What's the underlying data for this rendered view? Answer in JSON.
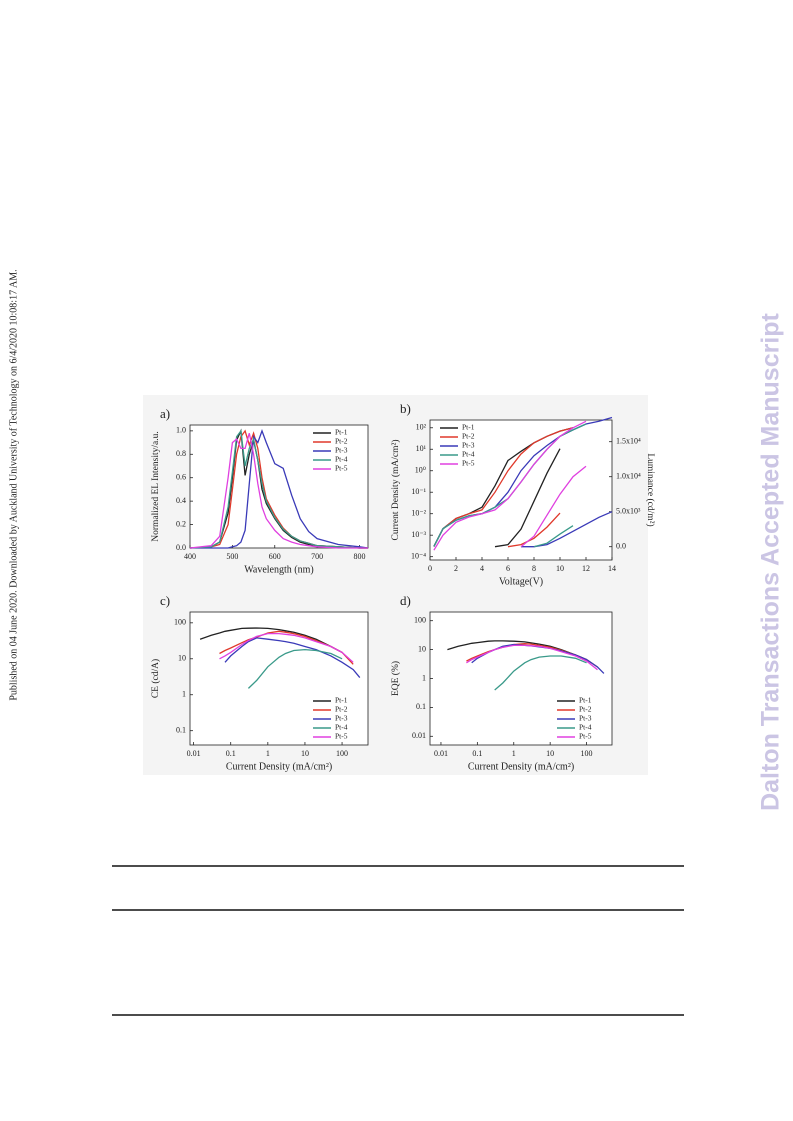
{
  "page": {
    "side_note": "Published on 04 June 2020. Downloaded by Auckland University of Technology on 6/4/2020 10:08:17 AM.",
    "watermark": "Dalton Transactions Accepted Manuscript"
  },
  "chart_data": [
    {
      "type": "line",
      "panel": "a)",
      "x_label": "Wavelength (nm)",
      "y_label": "Normalized EL Intensity/a.u.",
      "legend": "top-right",
      "xlim": [
        400,
        820
      ],
      "xticks": [
        400,
        500,
        600,
        700,
        800
      ],
      "ylim": [
        0,
        1.05
      ],
      "yticks": [
        {
          "value": 0,
          "label": "0.0"
        },
        0.2,
        0.4,
        0.6,
        0.8,
        {
          "value": 1,
          "label": "1.0"
        }
      ],
      "x": [
        400,
        450,
        470,
        490,
        500,
        510,
        520,
        530,
        540,
        550,
        560,
        570,
        580,
        600,
        620,
        640,
        660,
        680,
        700,
        750,
        800,
        820
      ],
      "series": [
        {
          "name": "Pt-1",
          "color": "#222222",
          "values": [
            0,
            0.01,
            0.05,
            0.3,
            0.6,
            0.92,
            1.0,
            0.62,
            0.8,
            0.92,
            0.75,
            0.5,
            0.38,
            0.25,
            0.15,
            0.09,
            0.05,
            0.03,
            0.02,
            0.01,
            0,
            0
          ]
        },
        {
          "name": "Pt-2",
          "color": "#e0392b",
          "values": [
            0,
            0.01,
            0.03,
            0.2,
            0.5,
            0.8,
            0.95,
            1.0,
            0.88,
            0.98,
            0.85,
            0.6,
            0.42,
            0.28,
            0.17,
            0.1,
            0.06,
            0.04,
            0.02,
            0.01,
            0,
            0
          ]
        },
        {
          "name": "Pt-3",
          "color": "#3a3ab8",
          "values": [
            0,
            0,
            0,
            0,
            0.01,
            0.02,
            0.05,
            0.15,
            0.55,
            0.95,
            0.9,
            1.0,
            0.9,
            0.72,
            0.68,
            0.45,
            0.25,
            0.14,
            0.08,
            0.03,
            0.01,
            0
          ]
        },
        {
          "name": "Pt-4",
          "color": "#3a9a8a",
          "values": [
            0,
            0.01,
            0.05,
            0.35,
            0.65,
            0.95,
            1.0,
            0.7,
            0.85,
            0.93,
            0.75,
            0.55,
            0.4,
            0.26,
            0.16,
            0.1,
            0.06,
            0.04,
            0.02,
            0.01,
            0,
            0
          ]
        },
        {
          "name": "Pt-5",
          "color": "#e040e0",
          "values": [
            0,
            0.02,
            0.1,
            0.6,
            0.9,
            0.93,
            0.85,
            0.85,
            0.98,
            0.8,
            0.55,
            0.35,
            0.25,
            0.15,
            0.08,
            0.05,
            0.03,
            0.02,
            0.01,
            0,
            0,
            0
          ]
        }
      ]
    },
    {
      "type": "line",
      "panel": "b)",
      "x_label": "Voltage(V)",
      "y_label": "Current Density (mA/cm²)",
      "y2_label": "Luminance (cd/m²)",
      "legend": "top-left",
      "ylog": true,
      "xlim": [
        0,
        14
      ],
      "xticks": [
        0,
        2,
        4,
        6,
        8,
        10,
        12,
        14
      ],
      "ylim": [
        7e-05,
        230
      ],
      "yticks": [
        {
          "value": 0.0001,
          "label": "10⁻⁴"
        },
        {
          "value": 0.001,
          "label": "10⁻³"
        },
        {
          "value": 0.01,
          "label": "10⁻²"
        },
        {
          "value": 0.1,
          "label": "10⁻¹"
        },
        {
          "value": 1,
          "label": "10⁰"
        },
        {
          "value": 10,
          "label": "10¹"
        },
        {
          "value": 100,
          "label": "10²"
        }
      ],
      "y2lim": [
        -1900,
        18100
      ],
      "y2ticks": [
        {
          "value": 0,
          "label": "0.0"
        },
        {
          "value": 5000,
          "label": "5.0x10³"
        },
        {
          "value": 10000,
          "label": "1.0x10⁴"
        },
        {
          "value": 15000,
          "label": "1.5x10⁴"
        }
      ],
      "x": [
        0.3,
        1,
        2,
        3,
        4,
        5,
        6,
        7,
        8,
        9,
        10,
        11,
        12,
        13,
        14
      ],
      "series": [
        {
          "name": "Pt-1",
          "color": "#222222",
          "values": [
            0.0003,
            0.002,
            0.006,
            0.01,
            0.02,
            0.2,
            3,
            8,
            20,
            40,
            70,
            100,
            null,
            null,
            null
          ]
        },
        {
          "name": "Pt-2",
          "color": "#e0392b",
          "values": [
            0.0003,
            0.002,
            0.006,
            0.01,
            0.015,
            0.1,
            1,
            6,
            20,
            40,
            70,
            100,
            null,
            null,
            null
          ]
        },
        {
          "name": "Pt-3",
          "color": "#3a3ab8",
          "values": [
            0.0003,
            0.002,
            0.005,
            0.008,
            0.01,
            0.02,
            0.1,
            1,
            5,
            15,
            40,
            80,
            150,
            200,
            300
          ]
        },
        {
          "name": "Pt-4",
          "color": "#3a9a8a",
          "values": [
            0.0003,
            0.002,
            0.005,
            0.008,
            0.01,
            0.02,
            0.05,
            0.3,
            2,
            10,
            40,
            80,
            150,
            null,
            null
          ]
        },
        {
          "name": "Pt-5",
          "color": "#e040e0",
          "values": [
            0.0002,
            0.001,
            0.004,
            0.007,
            0.01,
            0.015,
            0.05,
            0.3,
            2,
            10,
            40,
            100,
            200,
            null,
            null
          ]
        },
        {
          "color": "#222222",
          "axis": "y2",
          "values": [
            null,
            null,
            null,
            null,
            null,
            0,
            300,
            2500,
            6500,
            10500,
            14000,
            null,
            null,
            null,
            null
          ]
        },
        {
          "color": "#e0392b",
          "axis": "y2",
          "values": [
            null,
            null,
            null,
            null,
            null,
            null,
            0,
            300,
            1200,
            2800,
            4800,
            null,
            null,
            null,
            null
          ]
        },
        {
          "color": "#3a3ab8",
          "axis": "y2",
          "values": [
            null,
            null,
            null,
            null,
            null,
            null,
            null,
            0,
            0,
            300,
            1200,
            2200,
            3200,
            4200,
            5000
          ]
        },
        {
          "color": "#3a9a8a",
          "axis": "y2",
          "values": [
            null,
            null,
            null,
            null,
            null,
            null,
            null,
            null,
            0,
            500,
            1800,
            3000,
            null,
            null,
            null
          ]
        },
        {
          "color": "#e040e0",
          "axis": "y2",
          "values": [
            null,
            null,
            null,
            null,
            null,
            null,
            null,
            0,
            1500,
            4500,
            7500,
            10000,
            11500,
            null,
            null
          ]
        }
      ]
    },
    {
      "type": "line",
      "panel": "c)",
      "x_label": "Current Density (mA/cm²)",
      "y_label": "CE (cd/A)",
      "legend": "bottom-right",
      "xlog": true,
      "ylog": true,
      "xlim": [
        0.008,
        500
      ],
      "xticks": [
        0.01,
        0.1,
        1,
        10,
        100
      ],
      "ylim": [
        0.04,
        200
      ],
      "yticks": [
        0.1,
        1,
        10,
        100
      ],
      "x": [
        0.015,
        0.03,
        0.05,
        0.07,
        0.1,
        0.2,
        0.3,
        0.5,
        1,
        2,
        3,
        5,
        10,
        20,
        50,
        100,
        200,
        300
      ],
      "series": [
        {
          "name": "Pt-1",
          "color": "#222222",
          "values": [
            35,
            45,
            52,
            58,
            62,
            70,
            71,
            72,
            70,
            65,
            60,
            55,
            45,
            35,
            22,
            15,
            null,
            null
          ]
        },
        {
          "name": "Pt-2",
          "color": "#e0392b",
          "values": [
            null,
            null,
            14,
            17,
            20,
            28,
            34,
            40,
            52,
            58,
            55,
            50,
            42,
            32,
            22,
            15,
            7,
            null
          ]
        },
        {
          "name": "Pt-3",
          "color": "#3a3ab8",
          "values": [
            null,
            null,
            null,
            8,
            12,
            22,
            30,
            38,
            35,
            32,
            30,
            27,
            22,
            18,
            12,
            8,
            5,
            3
          ]
        },
        {
          "name": "Pt-4",
          "color": "#3a9a8a",
          "values": [
            null,
            null,
            null,
            null,
            null,
            null,
            1.5,
            2.5,
            6,
            11,
            14,
            17,
            18,
            17,
            14,
            10,
            null,
            null
          ]
        },
        {
          "name": "Pt-5",
          "color": "#e040e0",
          "values": [
            null,
            null,
            10,
            12,
            15,
            25,
            32,
            42,
            50,
            50,
            48,
            45,
            38,
            30,
            22,
            15,
            8,
            null
          ]
        }
      ]
    },
    {
      "type": "line",
      "panel": "d)",
      "x_label": "Current Density (mA/cm²)",
      "y_label": "EQE (%)",
      "legend": "bottom-right",
      "xlog": true,
      "ylog": true,
      "xlim": [
        0.005,
        500
      ],
      "xticks": [
        0.01,
        0.1,
        1,
        10,
        100
      ],
      "ylim": [
        0.005,
        200
      ],
      "yticks": [
        0.01,
        0.1,
        1,
        10,
        100
      ],
      "x": [
        0.015,
        0.03,
        0.05,
        0.07,
        0.1,
        0.2,
        0.3,
        0.5,
        1,
        2,
        3,
        5,
        10,
        20,
        50,
        100,
        200,
        300
      ],
      "series": [
        {
          "name": "Pt-1",
          "color": "#222222",
          "values": [
            10,
            13,
            15,
            16.5,
            17.5,
            19.5,
            20,
            20,
            19.5,
            18.5,
            17,
            15.5,
            13,
            10,
            6.5,
            4.5,
            null,
            null
          ]
        },
        {
          "name": "Pt-2",
          "color": "#e0392b",
          "values": [
            null,
            null,
            4,
            5,
            6,
            8.5,
            10,
            12,
            15,
            16,
            15.5,
            14,
            12,
            9.5,
            6.5,
            4.5,
            2.5,
            null
          ]
        },
        {
          "name": "Pt-3",
          "color": "#3a3ab8",
          "values": [
            null,
            null,
            null,
            3.5,
            5,
            8,
            10,
            13,
            15,
            14,
            13.5,
            12.5,
            11,
            9,
            6.5,
            4.5,
            2.5,
            1.5
          ]
        },
        {
          "name": "Pt-4",
          "color": "#3a9a8a",
          "values": [
            null,
            null,
            null,
            null,
            null,
            null,
            0.4,
            0.7,
            1.8,
            3.5,
            4.5,
            5.5,
            6,
            6,
            5,
            3.5,
            null,
            null
          ]
        },
        {
          "name": "Pt-5",
          "color": "#e040e0",
          "values": [
            null,
            null,
            3.5,
            4.5,
            5.5,
            8,
            10,
            12,
            14,
            14,
            13.5,
            13,
            11,
            8.5,
            6,
            4,
            2,
            null
          ]
        }
      ]
    }
  ]
}
